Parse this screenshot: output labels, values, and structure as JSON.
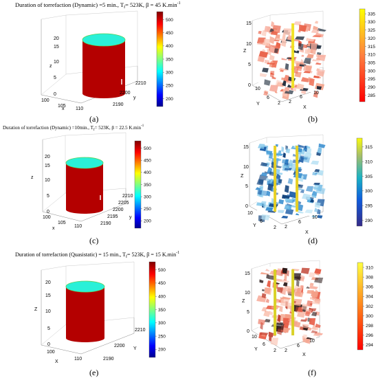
{
  "figure": {
    "a_title_pre": "Duration of torrefaction (Dynamic) =5 min., T",
    "a_title_post": "= 523K, β = 45 K.min",
    "c_title_pre": "Duration of torrefaction (Dynamic) =10min., T",
    "c_title_post": "= 523K, β = 22.5 K.min",
    "e_title_pre": "Duration of torrefaction (Quasistatic) = 15 min., T",
    "e_title_post": "= 523K, β = 15 K.min",
    "sub_f": "f",
    "sup_m1": "-1",
    "captions": [
      "(a)",
      "(b)",
      "(c)",
      "(d)",
      "(e)",
      "(f)"
    ]
  },
  "chart_data": [
    {
      "id": "a",
      "type": "heatmap",
      "title": "Duration of torrefaction (Dynamic) =5 min., Tf= 523K, β = 45 K.min-1",
      "axes": {
        "x_label": "x",
        "y_label": "y",
        "z_label": "z",
        "x_ticks": [
          "100",
          "105",
          "110"
        ],
        "y_ticks": [
          "2190",
          "2200",
          "2210"
        ],
        "z_ticks": [
          "0",
          "5",
          "10",
          "15",
          "20"
        ]
      },
      "colorbar": {
        "ticks": [
          "200",
          "250",
          "300",
          "350",
          "400",
          "450",
          "500"
        ],
        "range": [
          170,
          530
        ],
        "colormap": "jet"
      }
    },
    {
      "id": "b",
      "type": "heatmap",
      "axes": {
        "x_label": "X",
        "y_label": "Y",
        "z_label": "Z",
        "x_ticks": [
          "2",
          "6",
          "10"
        ],
        "y_ticks": [
          "2",
          "6",
          "10"
        ],
        "z_ticks": [
          "0",
          "5",
          "10",
          "15"
        ]
      },
      "colorbar": {
        "ticks": [
          "285",
          "290",
          "295",
          "300",
          "305",
          "310",
          "315",
          "320",
          "325",
          "330",
          "335"
        ],
        "range": [
          281,
          338
        ],
        "colormap": "autumn"
      }
    },
    {
      "id": "c",
      "type": "heatmap",
      "title": "Duration of torrefaction (Dynamic) =10min., Tf= 523K, β = 22.5 K.min-1",
      "axes": {
        "x_label": "x",
        "y_label": "y",
        "z_label": "z",
        "x_ticks": [
          "100",
          "105",
          "110"
        ],
        "y_ticks": [
          "2190",
          "2195",
          "2200",
          "2205",
          "2210"
        ],
        "z_ticks": [
          "0",
          "5",
          "10",
          "15",
          "20"
        ]
      },
      "colorbar": {
        "ticks": [
          "200",
          "250",
          "300",
          "350",
          "400",
          "450",
          "500"
        ],
        "range": [
          170,
          530
        ],
        "colormap": "jet"
      }
    },
    {
      "id": "d",
      "type": "heatmap",
      "axes": {
        "x_label": "X",
        "y_label": "Y",
        "z_label": "Z",
        "x_ticks": [
          "2",
          "6",
          "10"
        ],
        "y_ticks": [
          "2",
          "6",
          "10"
        ],
        "z_ticks": [
          "0",
          "5",
          "10",
          "15"
        ]
      },
      "colorbar": {
        "ticks": [
          "290",
          "295",
          "300",
          "305",
          "310",
          "315"
        ],
        "range": [
          288,
          318
        ],
        "colormap": "parula"
      }
    },
    {
      "id": "e",
      "type": "heatmap",
      "title": "Duration of torrefaction (Quasistatic) = 15 min., Tf= 523K, β = 15 K.min-1",
      "axes": {
        "x_label": "X",
        "y_label": "Y",
        "z_label": "Z",
        "x_ticks": [
          "100",
          "110"
        ],
        "y_ticks": [
          "2190",
          "2200",
          "2210"
        ],
        "z_ticks": [
          "0",
          "5",
          "10",
          "15",
          "20"
        ]
      },
      "colorbar": {
        "ticks": [
          "200",
          "250",
          "300",
          "350",
          "400",
          "450",
          "500"
        ],
        "range": [
          170,
          530
        ],
        "colormap": "jet"
      }
    },
    {
      "id": "f",
      "type": "heatmap",
      "axes": {
        "x_label": "X",
        "y_label": "Y",
        "z_label": "Z",
        "x_ticks": [
          "2",
          "6",
          "10"
        ],
        "y_ticks": [
          "2",
          "6",
          "10"
        ],
        "z_ticks": [
          "0",
          "5",
          "10",
          "15"
        ]
      },
      "colorbar": {
        "ticks": [
          "294",
          "296",
          "298",
          "300",
          "302",
          "304",
          "306",
          "308",
          "310"
        ],
        "range": [
          293,
          311
        ],
        "colormap": "hot"
      }
    }
  ]
}
